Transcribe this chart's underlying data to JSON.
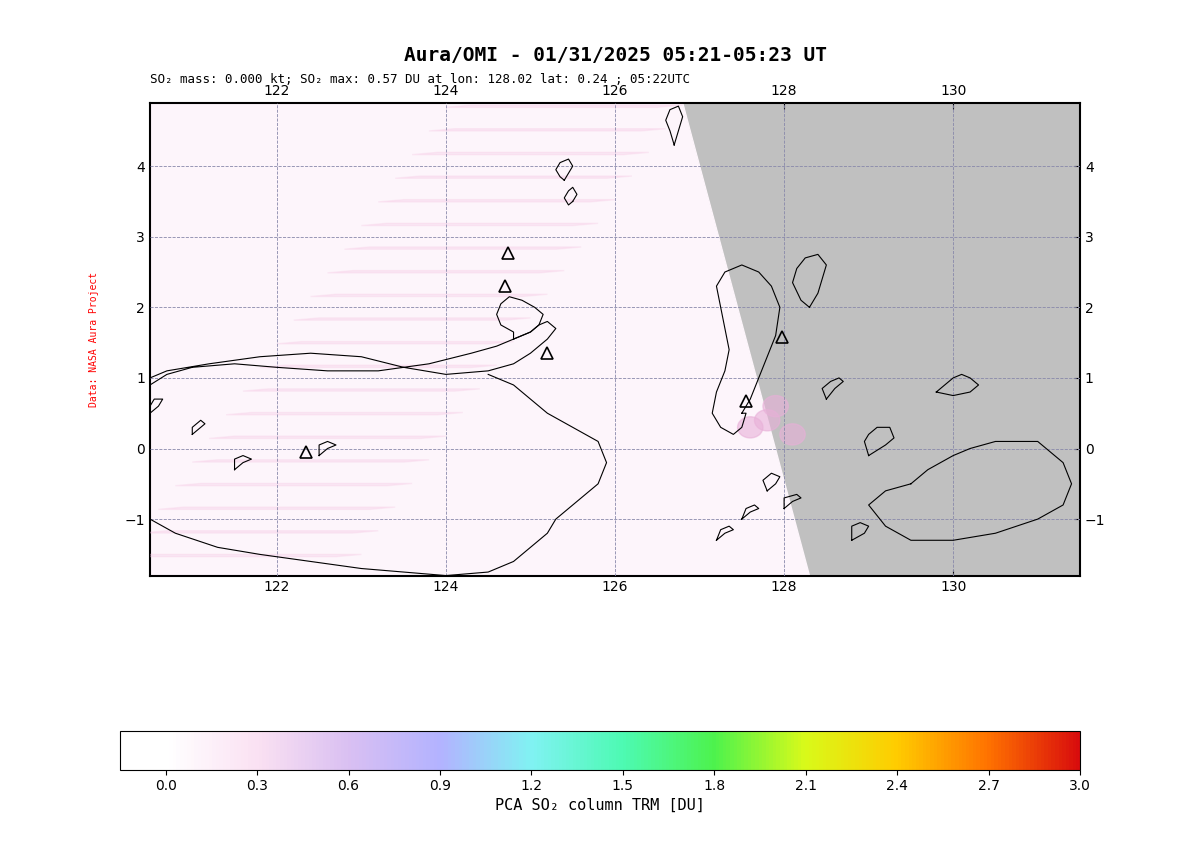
{
  "title": "Aura/OMI - 01/31/2025 05:21-05:23 UT",
  "subtitle": "SO₂ mass: 0.000 kt; SO₂ max: 0.57 DU at lon: 128.02 lat: 0.24 ; 05:22UTC",
  "colorbar_label": "PCA SO₂ column TRM [DU]",
  "colorbar_ticks": [
    0.0,
    0.3,
    0.6,
    0.9,
    1.2,
    1.5,
    1.8,
    2.1,
    2.4,
    2.7,
    3.0
  ],
  "xlabel_bottom": "",
  "ylabel_left": "Data: NASA Aura Project",
  "lon_min": 120.5,
  "lon_max": 131.5,
  "lat_min": -1.8,
  "lat_max": 4.9,
  "lon_ticks": [
    122,
    124,
    126,
    128,
    130
  ],
  "lat_ticks": [
    -1,
    0,
    1,
    2,
    3,
    4
  ],
  "background_color_left": "#000000",
  "background_color_data": "#e8e8e8",
  "swath_bg_color": "#f5f0f5",
  "no_data_color": "#c8c8c8",
  "grid_color": "#555577",
  "coastline_color": "#000000",
  "volcano_marker_color": "#000000",
  "so2_color_low": "#fce4f0",
  "so2_color_mid": "#e8b0d8",
  "title_fontsize": 14,
  "subtitle_fontsize": 9,
  "tick_fontsize": 10,
  "colorbar_tick_fontsize": 10
}
